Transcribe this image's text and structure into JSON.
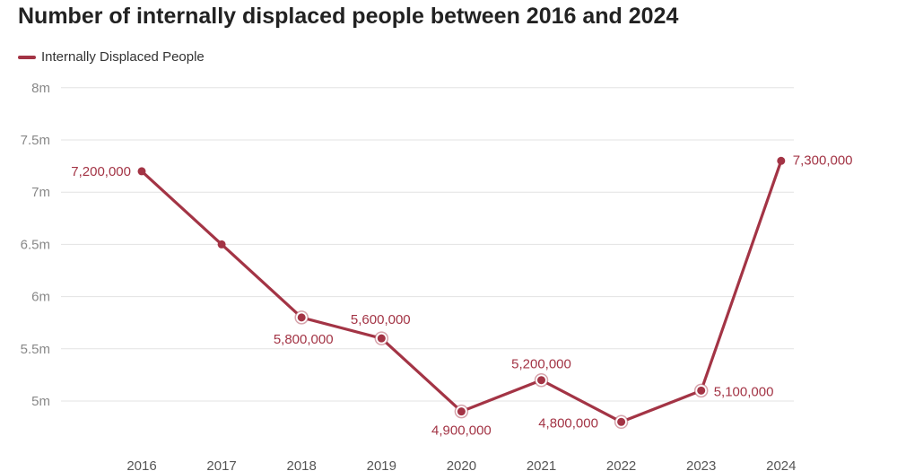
{
  "title": "Number of internally displaced people between 2016 and 2024",
  "colors": {
    "series": "#a33445",
    "grid": "#e3e3e3"
  },
  "chart_data": {
    "type": "line",
    "title": "Number of internally displaced people between 2016 and 2024",
    "xlabel": "",
    "ylabel": "",
    "categories": [
      "2016",
      "2017",
      "2018",
      "2019",
      "2020",
      "2021",
      "2022",
      "2023",
      "2024"
    ],
    "series": [
      {
        "name": "Internally Displaced People",
        "values": [
          7200000,
          6500000,
          5800000,
          5600000,
          4900000,
          5200000,
          4800000,
          5100000,
          7300000
        ]
      }
    ],
    "yticks": [
      {
        "value": 5000000,
        "label": "5m"
      },
      {
        "value": 5500000,
        "label": "5.5m"
      },
      {
        "value": 6000000,
        "label": "6m"
      },
      {
        "value": 6500000,
        "label": "6.5m"
      },
      {
        "value": 7000000,
        "label": "7m"
      },
      {
        "value": 7500000,
        "label": "7.5m"
      },
      {
        "value": 8000000,
        "label": "8m"
      }
    ],
    "data_labels": [
      {
        "index": 0,
        "text": "7,200,000"
      },
      {
        "index": 2,
        "text": "5,800,000"
      },
      {
        "index": 3,
        "text": "5,600,000"
      },
      {
        "index": 4,
        "text": "4,900,000"
      },
      {
        "index": 5,
        "text": "5,200,000"
      },
      {
        "index": 6,
        "text": "4,800,000"
      },
      {
        "index": 7,
        "text": "5,100,000"
      },
      {
        "index": 8,
        "text": "7,300,000"
      }
    ],
    "highlighted_points": [
      2,
      3,
      4,
      5,
      6,
      7
    ],
    "legend": "top-left",
    "grid": true
  }
}
